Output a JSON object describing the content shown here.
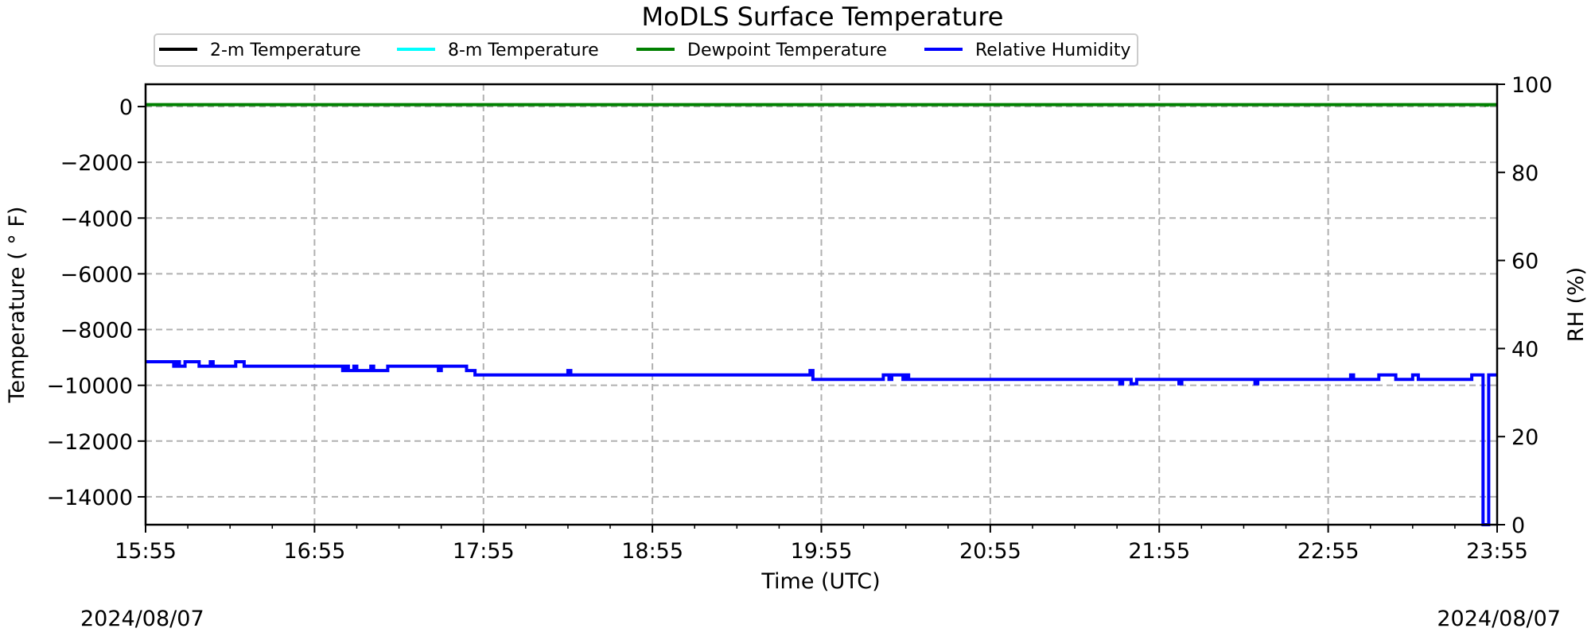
{
  "chart_data": {
    "type": "line",
    "title": "MoDLS Surface Temperature",
    "xlabel": "Time (UTC)",
    "ylabel": "Temperature ($^\\circ$F)",
    "ylabel_display": "Temperature ( ° F)",
    "y2label": "RH (%)",
    "date_left": "2024/08/07",
    "date_right": "2024/08/07",
    "x_ticks": [
      "15:55",
      "16:55",
      "17:55",
      "18:55",
      "19:55",
      "20:55",
      "21:55",
      "22:55",
      "23:55"
    ],
    "y_ticks": [
      0,
      -2000,
      -4000,
      -6000,
      -8000,
      -10000,
      -12000,
      -14000
    ],
    "y_tick_labels": [
      "0",
      "−2000",
      "−4000",
      "−6000",
      "−8000",
      "−10000",
      "−12000",
      "−14000"
    ],
    "y2_ticks": [
      0,
      20,
      40,
      60,
      80,
      100
    ],
    "ylim": [
      -15000,
      800
    ],
    "y2lim": [
      0,
      100
    ],
    "xlim_minutes": [
      0,
      480
    ],
    "grid": true,
    "legend_position": "top-left",
    "legend": [
      {
        "name": "2-m Temperature",
        "color": "#000000"
      },
      {
        "name": "8-m Temperature",
        "color": "#00ffff"
      },
      {
        "name": "Dewpoint Temperature",
        "color": "#008000"
      },
      {
        "name": "Relative Humidity",
        "color": "#0000ff"
      }
    ],
    "series": [
      {
        "name": "Dewpoint Temperature",
        "axis": "left",
        "color": "#008000",
        "x": [
          0,
          476,
          476,
          476.5,
          476.5,
          480
        ],
        "y": [
          70,
          70,
          50,
          50,
          70,
          70
        ]
      },
      {
        "name": "Relative Humidity",
        "axis": "right",
        "color": "#0000ff",
        "x": [
          0,
          10,
          10,
          11,
          11,
          12,
          12,
          14,
          14,
          19,
          19,
          23,
          23,
          24,
          24,
          32,
          32,
          35,
          35,
          70,
          70,
          71,
          71,
          72,
          72,
          74,
          74,
          75,
          75,
          80,
          80,
          81,
          81,
          86,
          86,
          104,
          104,
          105,
          105,
          114,
          114,
          117,
          117,
          150,
          150,
          151,
          151,
          236,
          236,
          237,
          237,
          262,
          262,
          264,
          264,
          265,
          265,
          269,
          269,
          270,
          270,
          271,
          271,
          346,
          346,
          347,
          347,
          350,
          350,
          352,
          352,
          367,
          367,
          368,
          368,
          394,
          394,
          395,
          395,
          428,
          428,
          429,
          429,
          438,
          438,
          444,
          444,
          450,
          450,
          452,
          452,
          471,
          471,
          474,
          474,
          475,
          475,
          477,
          477,
          480
        ],
        "y": [
          37,
          37,
          36,
          36,
          37,
          37,
          36,
          36,
          37,
          37,
          36,
          36,
          37,
          37,
          36,
          36,
          37,
          37,
          36,
          36,
          35,
          35,
          36,
          36,
          35,
          35,
          36,
          36,
          35,
          35,
          36,
          36,
          35,
          35,
          36,
          36,
          35,
          35,
          36,
          36,
          35,
          35,
          34,
          34,
          35,
          35,
          34,
          34,
          35,
          35,
          33,
          33,
          34,
          34,
          33,
          33,
          34,
          34,
          33,
          33,
          34,
          34,
          33,
          33,
          32,
          32,
          33,
          33,
          32,
          32,
          33,
          33,
          32,
          32,
          33,
          33,
          32,
          32,
          33,
          33,
          34,
          34,
          33,
          33,
          34,
          34,
          33,
          33,
          34,
          34,
          33,
          33,
          34,
          34,
          34,
          34,
          0,
          0,
          34,
          34
        ]
      }
    ]
  }
}
